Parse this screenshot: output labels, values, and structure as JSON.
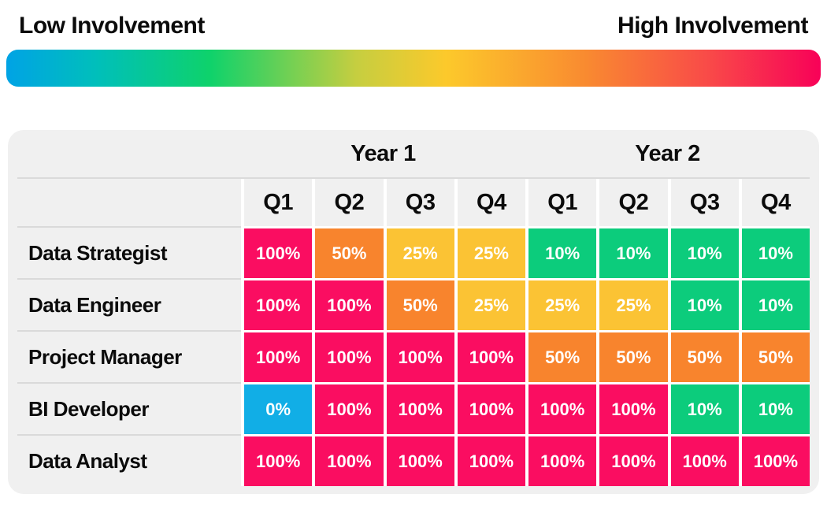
{
  "legend": {
    "low_label": "Low Involvement",
    "high_label": "High Involvement",
    "gradient_stops": [
      "#00A3E5 0%",
      "#00BFBB 11%",
      "#0ED26B 25%",
      "#C6CE40 43%",
      "#FCC92B 54%",
      "#F98B30 71%",
      "#F94B48 86%",
      "#F80158 100%"
    ]
  },
  "colors": {
    "pink": "#FA0D61",
    "orange": "#F8842D",
    "yellow": "#FBC334",
    "green": "#0CCC7C",
    "blue": "#11AEE6",
    "table_bg": "#F0F0F0",
    "divider": "#DADADA"
  },
  "table": {
    "year_headers": [
      {
        "label": "Year 1",
        "span": 4
      },
      {
        "label": "Year 2",
        "span": 4
      }
    ],
    "quarter_headers": [
      "Q1",
      "Q2",
      "Q3",
      "Q4",
      "Q1",
      "Q2",
      "Q3",
      "Q4"
    ],
    "rows": [
      {
        "role": "Data Strategist",
        "values": [
          "100%",
          "50%",
          "25%",
          "25%",
          "10%",
          "10%",
          "10%",
          "10%"
        ],
        "cell_colors": [
          "pink",
          "orange",
          "yellow",
          "yellow",
          "green",
          "green",
          "green",
          "green"
        ]
      },
      {
        "role": "Data Engineer",
        "values": [
          "100%",
          "100%",
          "50%",
          "25%",
          "25%",
          "25%",
          "10%",
          "10%"
        ],
        "cell_colors": [
          "pink",
          "pink",
          "orange",
          "yellow",
          "yellow",
          "yellow",
          "green",
          "green"
        ]
      },
      {
        "role": "Project Manager",
        "values": [
          "100%",
          "100%",
          "100%",
          "100%",
          "50%",
          "50%",
          "50%",
          "50%"
        ],
        "cell_colors": [
          "pink",
          "pink",
          "pink",
          "pink",
          "orange",
          "orange",
          "orange",
          "orange"
        ]
      },
      {
        "role": "BI Developer",
        "values": [
          "0%",
          "100%",
          "100%",
          "100%",
          "100%",
          "100%",
          "10%",
          "10%"
        ],
        "cell_colors": [
          "blue",
          "pink",
          "pink",
          "pink",
          "pink",
          "pink",
          "green",
          "green"
        ]
      },
      {
        "role": "Data Analyst",
        "values": [
          "100%",
          "100%",
          "100%",
          "100%",
          "100%",
          "100%",
          "100%",
          "100%"
        ],
        "cell_colors": [
          "pink",
          "pink",
          "pink",
          "pink",
          "pink",
          "pink",
          "pink",
          "pink"
        ]
      }
    ]
  },
  "chart_data": {
    "type": "heatmap",
    "title": "",
    "legend": {
      "left": "Low Involvement",
      "right": "High Involvement",
      "position": "top"
    },
    "column_groups": [
      {
        "label": "Year 1",
        "columns": [
          "Q1",
          "Q2",
          "Q3",
          "Q4"
        ]
      },
      {
        "label": "Year 2",
        "columns": [
          "Q1",
          "Q2",
          "Q3",
          "Q4"
        ]
      }
    ],
    "categories": [
      "Q1",
      "Q2",
      "Q3",
      "Q4",
      "Q1",
      "Q2",
      "Q3",
      "Q4"
    ],
    "series": [
      {
        "name": "Data Strategist",
        "values": [
          100,
          50,
          25,
          25,
          10,
          10,
          10,
          10
        ]
      },
      {
        "name": "Data Engineer",
        "values": [
          100,
          100,
          50,
          25,
          25,
          25,
          10,
          10
        ]
      },
      {
        "name": "Project Manager",
        "values": [
          100,
          100,
          100,
          100,
          50,
          50,
          50,
          50
        ]
      },
      {
        "name": "BI Developer",
        "values": [
          0,
          100,
          100,
          100,
          100,
          100,
          10,
          10
        ]
      },
      {
        "name": "Data Analyst",
        "values": [
          100,
          100,
          100,
          100,
          100,
          100,
          100,
          100
        ]
      }
    ],
    "value_unit": "%",
    "value_color_scale": {
      "0": "#11AEE6",
      "10": "#0CCC7C",
      "25": "#FBC334",
      "50": "#F8842D",
      "100": "#FA0D61"
    }
  }
}
